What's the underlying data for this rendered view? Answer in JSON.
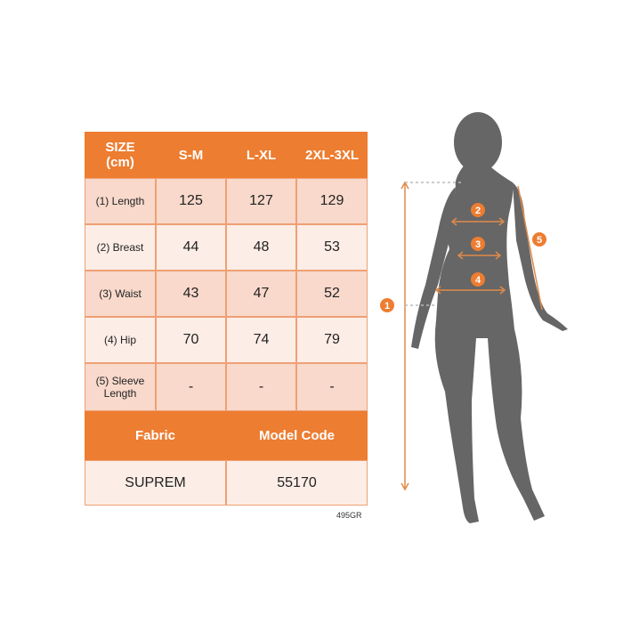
{
  "table": {
    "header": [
      "SIZE\n(cm)",
      "S-M",
      "L-XL",
      "2XL-3XL"
    ],
    "header_line1": "SIZE",
    "header_line2": "(cm)",
    "rows": [
      {
        "label": "(1) Length",
        "values": [
          "125",
          "127",
          "129"
        ]
      },
      {
        "label": "(2) Breast",
        "values": [
          "44",
          "48",
          "53"
        ]
      },
      {
        "label": "(3) Waist",
        "values": [
          "43",
          "47",
          "52"
        ]
      },
      {
        "label": "(4) Hip",
        "values": [
          "70",
          "74",
          "79"
        ]
      },
      {
        "label_line1": "(5) Sleeve",
        "label_line2": "Length",
        "values": [
          "-",
          "-",
          "-"
        ]
      }
    ],
    "footer_headers": [
      "Fabric",
      "Model Code"
    ],
    "footer_values": [
      "SUPREM",
      "55170"
    ]
  },
  "product_code": "495GR",
  "figure": {
    "markers": [
      "1",
      "2",
      "3",
      "4",
      "5"
    ]
  },
  "colors": {
    "accent": "#ED7D31",
    "silhouette": "#666666"
  }
}
